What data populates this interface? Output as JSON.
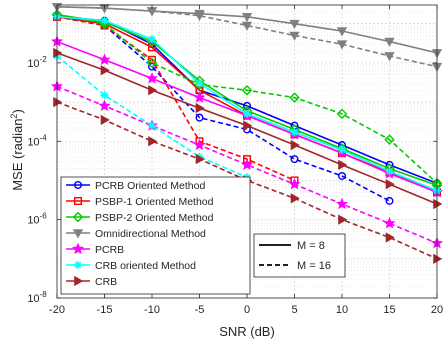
{
  "chart_data": {
    "type": "line",
    "xlabel": "SNR (dB)",
    "ylabel": "MSE (radian",
    "ylabel_sup": "2",
    "ylabel_tail": ")",
    "xlim": [
      -20,
      20
    ],
    "ylim": [
      1e-08,
      0.3
    ],
    "yscale": "log",
    "grid": true,
    "x_ticks": [
      -20,
      -15,
      -10,
      -5,
      0,
      5,
      10,
      15,
      20
    ],
    "x_tick_labels": [
      "-20",
      "-15",
      "-10",
      "-5",
      "0",
      "5",
      "10",
      "15",
      "20"
    ],
    "y_ticks": [
      1e-08,
      1e-06,
      0.0001,
      0.01
    ],
    "y_tick_labels": [
      {
        "base": "10",
        "exp": "-8"
      },
      {
        "base": "10",
        "exp": "-6"
      },
      {
        "base": "10",
        "exp": "-4"
      },
      {
        "base": "10",
        "exp": "-2"
      }
    ],
    "x": [
      -20,
      -15,
      -10,
      -5,
      0,
      5,
      10,
      15,
      20
    ],
    "series": [
      {
        "name": "PCRB Oriented Method",
        "color": "#0000ff",
        "marker": "circle",
        "M": 8,
        "values": [
          0.15,
          0.12,
          0.03,
          0.002,
          0.0008,
          0.00025,
          8e-05,
          2.5e-05,
          8.5e-06
        ]
      },
      {
        "name": "PSBP-1 Oriented Method",
        "color": "#ff0000",
        "marker": "square",
        "M": 8,
        "values": [
          0.15,
          0.1,
          0.025,
          0.002,
          0.00045,
          0.00015,
          5e-05,
          1.6e-05,
          5e-06
        ]
      },
      {
        "name": "PSBP-2 Oriented Method",
        "color": "#00cc00",
        "marker": "diamond",
        "M": 8,
        "values": [
          0.17,
          0.11,
          0.035,
          0.0035,
          0.0006,
          0.0002,
          6.5e-05,
          2e-05,
          7.5e-06
        ]
      },
      {
        "name": "Omnidirectional Method",
        "color": "#808080",
        "marker": "triangle-down",
        "M": 8,
        "values": [
          0.27,
          0.25,
          0.21,
          0.18,
          0.15,
          0.1,
          0.065,
          0.035,
          0.018
        ]
      },
      {
        "name": "PCRB",
        "color": "#ff00ff",
        "marker": "star",
        "M": 8,
        "values": [
          0.035,
          0.012,
          0.004,
          0.0013,
          0.00045,
          0.00015,
          5e-05,
          1.5e-05,
          5e-06
        ]
      },
      {
        "name": "CRB oriented Method",
        "color": "#00ffff",
        "marker": "asterisk",
        "M": 8,
        "values": [
          0.15,
          0.12,
          0.04,
          0.003,
          0.0005,
          0.00017,
          6e-05,
          1.7e-05,
          5.5e-06
        ]
      },
      {
        "name": "CRB",
        "color": "#a0262a",
        "marker": "triangle-right",
        "M": 8,
        "values": [
          0.018,
          0.0065,
          0.002,
          0.0007,
          0.00025,
          8e-05,
          2.5e-05,
          8e-06,
          2.5e-06
        ]
      },
      {
        "name": "PCRB Oriented Method",
        "color": "#0000ff",
        "marker": "circle",
        "M": 16,
        "values": [
          0.15,
          0.09,
          0.008,
          0.0004,
          0.0002,
          3.5e-05,
          1.3e-05,
          3e-06,
          null
        ]
      },
      {
        "name": "PSBP-1 Oriented Method",
        "color": "#ff0000",
        "marker": "square",
        "M": 16,
        "values": [
          0.15,
          0.09,
          0.012,
          0.0001,
          3.5e-05,
          1e-05,
          null,
          null,
          null
        ]
      },
      {
        "name": "PSBP-2 Oriented Method",
        "color": "#00cc00",
        "marker": "diamond",
        "M": 16,
        "values": [
          0.17,
          0.1,
          0.01,
          0.0028,
          0.002,
          0.0013,
          0.0005,
          0.00011,
          8.5e-06
        ]
      },
      {
        "name": "Omnidirectional Method",
        "color": "#808080",
        "marker": "triangle-down",
        "M": 16,
        "values": [
          0.27,
          0.25,
          0.21,
          0.16,
          0.09,
          0.05,
          0.03,
          0.015,
          0.008
        ]
      },
      {
        "name": "PCRB",
        "color": "#ff00ff",
        "marker": "star",
        "M": 16,
        "values": [
          0.0025,
          0.0008,
          0.00025,
          8e-05,
          2.5e-05,
          8e-06,
          2.5e-06,
          8e-07,
          2.5e-07
        ]
      },
      {
        "name": "CRB oriented Method",
        "color": "#00ffff",
        "marker": "asterisk",
        "M": 16,
        "values": [
          0.015,
          0.0015,
          0.00025,
          4e-05,
          1.2e-05,
          null,
          null,
          null,
          null
        ]
      },
      {
        "name": "CRB",
        "color": "#a0262a",
        "marker": "triangle-right",
        "M": 16,
        "values": [
          0.001,
          0.00035,
          0.0001,
          3.5e-05,
          1e-05,
          3.5e-06,
          1e-06,
          3.5e-07,
          1e-07
        ]
      }
    ],
    "legend": {
      "placement": "bottom-left",
      "entries": [
        {
          "label": "PCRB Oriented Method",
          "color": "#0000ff",
          "marker": "circle"
        },
        {
          "label": "PSBP-1 Oriented Method",
          "color": "#ff0000",
          "marker": "square"
        },
        {
          "label": "PSBP-2 Oriented Method",
          "color": "#00cc00",
          "marker": "diamond"
        },
        {
          "label": "Omnidirectional Method",
          "color": "#808080",
          "marker": "triangle-down"
        },
        {
          "label": "PCRB",
          "color": "#ff00ff",
          "marker": "star"
        },
        {
          "label": "CRB oriented Method",
          "color": "#00ffff",
          "marker": "asterisk"
        },
        {
          "label": "CRB",
          "color": "#a0262a",
          "marker": "triangle-right"
        }
      ]
    },
    "linestyle_legend": {
      "placement": "bottom-center",
      "entries": [
        {
          "label": "M = 8",
          "style": "solid"
        },
        {
          "label": "M = 16",
          "style": "dashed"
        }
      ]
    }
  }
}
